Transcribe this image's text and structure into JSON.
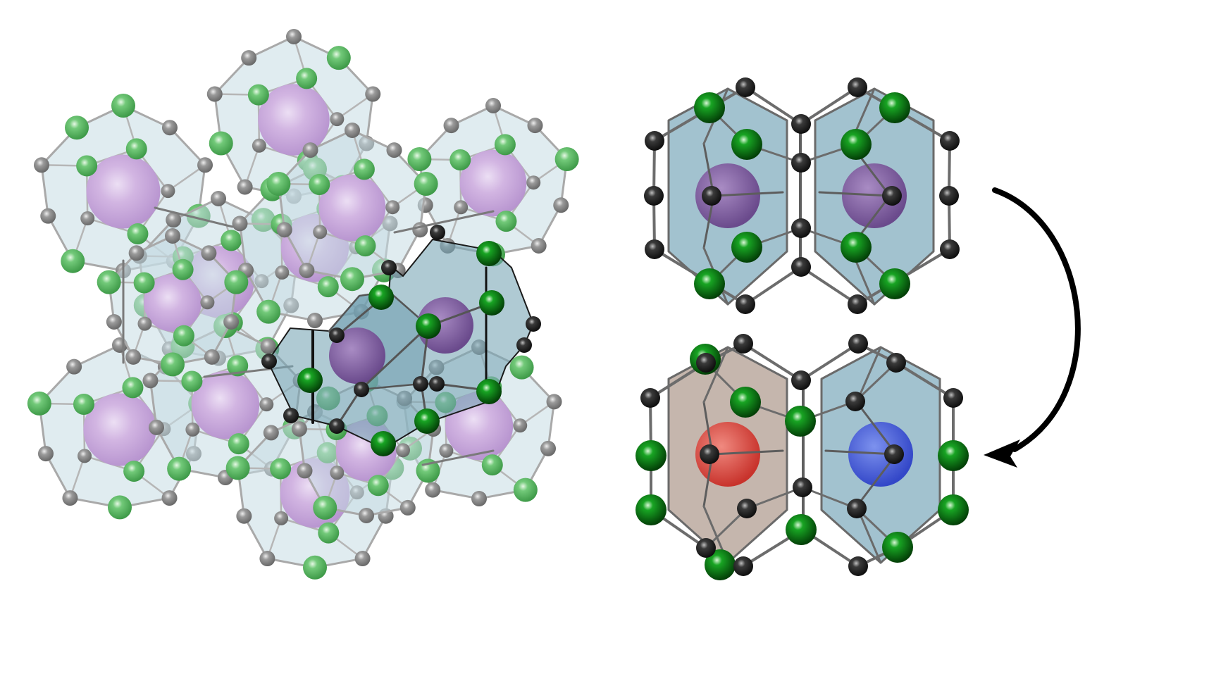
{
  "figure": {
    "panels": [
      {
        "name": "lattice",
        "label": ""
      },
      {
        "name": "cage-pair-initial",
        "label": ""
      },
      {
        "name": "cage-pair-final",
        "label": ""
      }
    ],
    "colors": {
      "background": "#ffffff",
      "cage_face": "#8fb6c6",
      "cage_face_faded": "#c6dde4",
      "cage_edge": "#5f5f5f",
      "framework_atom": "#2d2d2d",
      "framework_atom_faded": "#8e8e8e",
      "linker_atom": "#0a7a12",
      "linker_atom_faded": "#5fbf66",
      "guest": "#7d5a9e",
      "guest_faded": "#c9aadd",
      "guest_red": "#d8453f",
      "guest_blue": "#3e58d4",
      "cage_red": "#b9a79d",
      "arrow": "#000000"
    },
    "arrow": {
      "direction": "top-pair-to-bottom-pair",
      "icon": "curved-arrow-icon"
    }
  }
}
